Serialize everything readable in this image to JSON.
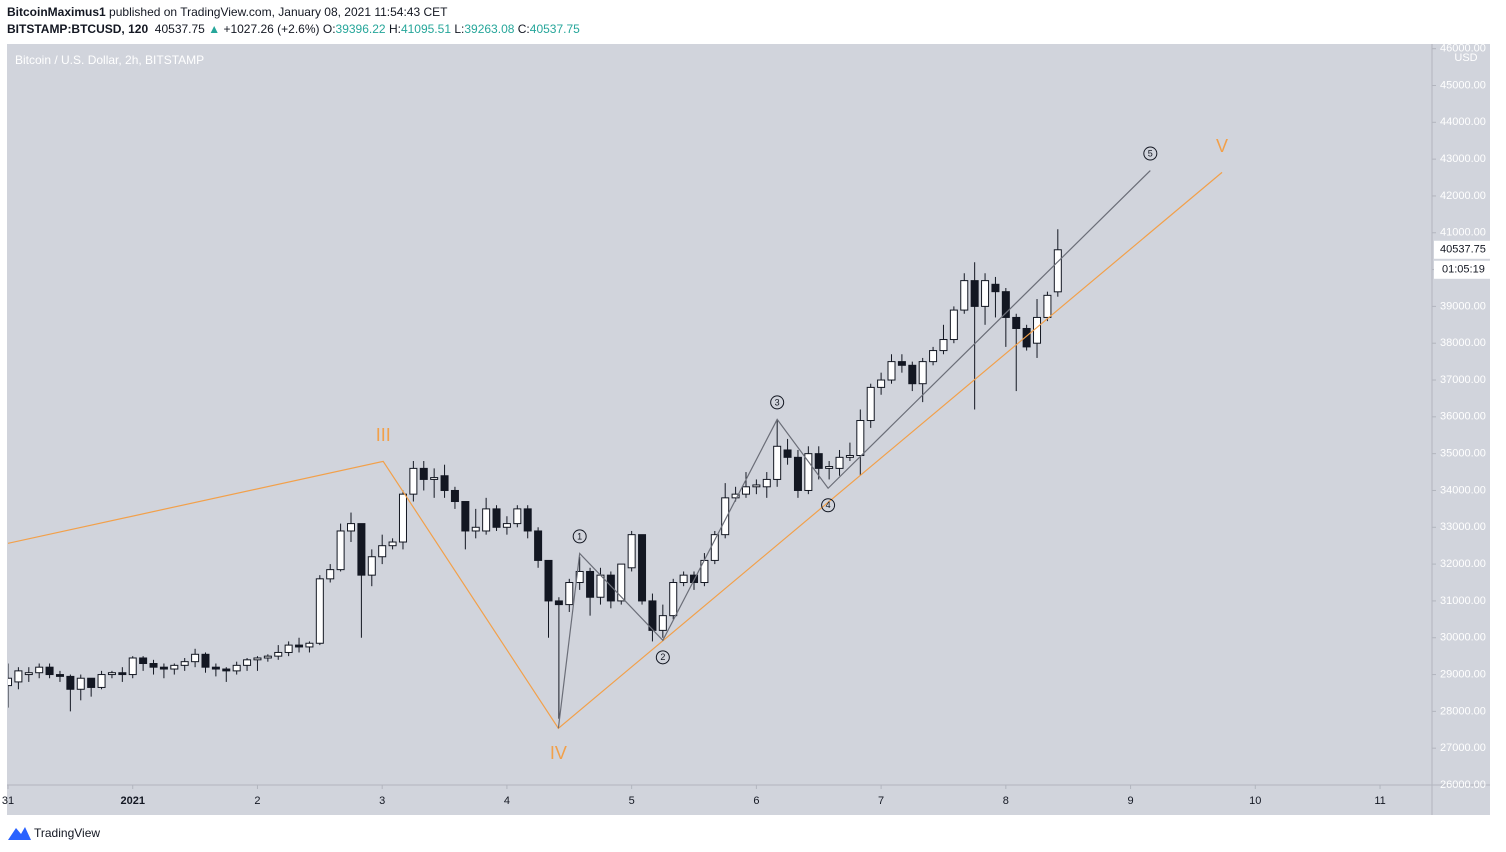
{
  "header": {
    "author": "BitcoinMaximus1",
    "published": "published on TradingView.com, January 08, 2021 11:54:43 CET",
    "symbol": "BITSTAMP:BTCUSD, 120",
    "last": "40537.75",
    "arrow": "▲",
    "change": "+1027.26 (+2.6%)",
    "ohlc": [
      {
        "label": "O:",
        "value": "39396.22"
      },
      {
        "label": "H:",
        "value": "41095.51"
      },
      {
        "label": "L:",
        "value": "39263.08"
      },
      {
        "label": "C:",
        "value": "40537.75"
      }
    ]
  },
  "chart_data": {
    "type": "candlestick",
    "title": "Bitcoin / U.S. Dollar, 2h, BITSTAMP",
    "y_unit": "USD",
    "countdown": "01:05:19",
    "up_color": "#ffffff",
    "down_color": "#131722",
    "grid": false,
    "x": [
      0,
      2,
      4,
      6,
      8,
      10,
      12,
      14,
      16,
      18,
      20,
      22,
      24,
      26,
      28,
      30,
      32,
      34,
      36,
      38,
      40,
      42,
      44,
      46,
      48,
      50,
      52,
      54,
      56,
      58,
      60,
      62,
      64,
      66,
      68,
      70,
      72,
      74,
      76,
      78,
      80,
      82,
      84,
      86,
      88,
      90,
      92,
      94,
      96,
      98,
      100,
      102,
      104,
      106,
      108,
      110,
      112,
      114,
      116,
      118,
      120,
      122,
      124,
      126,
      128,
      130,
      132,
      134,
      136,
      138,
      140,
      142,
      144,
      146,
      148,
      150,
      152,
      154,
      156,
      158,
      160,
      162,
      164,
      166,
      168,
      170,
      172,
      174,
      176,
      178,
      180,
      182,
      184,
      186,
      188,
      190,
      192,
      194,
      196,
      198,
      200,
      202
    ],
    "open": [
      28700,
      28800,
      29000,
      29050,
      29200,
      29000,
      28950,
      28600,
      28900,
      28650,
      29000,
      29050,
      29000,
      29450,
      29300,
      29200,
      29150,
      29250,
      29350,
      29550,
      29200,
      29150,
      29100,
      29250,
      29400,
      29450,
      29500,
      29600,
      29800,
      29750,
      29850,
      31600,
      31850,
      32900,
      33100,
      31700,
      32200,
      32500,
      32600,
      33900,
      34600,
      34300,
      34400,
      34000,
      33700,
      32900,
      32900,
      33500,
      33000,
      33100,
      33500,
      32900,
      32100,
      31000,
      30900,
      31500,
      31800,
      31100,
      31700,
      31000,
      31900,
      32800,
      31000,
      30200,
      30600,
      31500,
      31700,
      31500,
      32100,
      32800,
      33800,
      33900,
      34100,
      34100,
      34300,
      35100,
      34900,
      34000,
      35000,
      34600,
      34600,
      34900,
      34950,
      35900,
      36800,
      37000,
      37500,
      37400,
      36900,
      37500,
      37800,
      38100,
      38900,
      39700,
      39000,
      39600,
      39400,
      38700,
      38400,
      38000,
      38700,
      39396.22
    ],
    "high": [
      29300,
      29200,
      29200,
      29300,
      29300,
      29100,
      29000,
      29000,
      28900,
      29100,
      29100,
      29200,
      29500,
      29500,
      29400,
      29300,
      29300,
      29450,
      29700,
      29600,
      29300,
      29200,
      29350,
      29450,
      29500,
      29550,
      29800,
      29900,
      30000,
      29900,
      31700,
      32000,
      33100,
      33400,
      33100,
      32400,
      32800,
      32700,
      34000,
      34800,
      34800,
      34600,
      34700,
      34100,
      33700,
      33500,
      33800,
      33600,
      33300,
      33600,
      33600,
      33000,
      32100,
      31100,
      31600,
      32200,
      31900,
      31900,
      31800,
      32000,
      32900,
      32800,
      31200,
      30900,
      31600,
      31800,
      31800,
      32300,
      32900,
      34200,
      34100,
      34500,
      34300,
      34500,
      35900,
      35400,
      35100,
      35200,
      35200,
      34800,
      35100,
      35300,
      36200,
      36900,
      37200,
      37700,
      37700,
      37500,
      37600,
      37900,
      38500,
      39000,
      39900,
      40200,
      39900,
      39800,
      39500,
      38800,
      38500,
      39200,
      39400,
      41095.51
    ],
    "low": [
      28100,
      28600,
      28800,
      28900,
      28900,
      28800,
      28000,
      28300,
      28400,
      28600,
      28900,
      28800,
      28900,
      29100,
      29000,
      28900,
      29000,
      29100,
      29200,
      29050,
      28950,
      28800,
      29000,
      29100,
      29100,
      29350,
      29400,
      29500,
      29600,
      29600,
      29800,
      31500,
      31800,
      32600,
      30000,
      31400,
      32000,
      32400,
      32400,
      33700,
      34000,
      33800,
      33800,
      33500,
      32400,
      32700,
      32800,
      32900,
      32800,
      33000,
      32700,
      31900,
      30000,
      27800,
      30700,
      31300,
      30600,
      30900,
      30800,
      30900,
      31800,
      30900,
      29900,
      30000,
      30500,
      31400,
      31300,
      31400,
      32000,
      32700,
      33700,
      33800,
      33900,
      33800,
      34100,
      34700,
      33800,
      33900,
      34300,
      34300,
      34400,
      34800,
      34400,
      35700,
      36600,
      36900,
      37200,
      36700,
      36400,
      37400,
      37700,
      38000,
      38800,
      36200,
      38500,
      38700,
      37900,
      36700,
      37800,
      37600,
      38600,
      39263.08
    ],
    "close": [
      28900,
      29100,
      29050,
      29200,
      29000,
      28950,
      28600,
      28900,
      28650,
      29000,
      29050,
      29000,
      29450,
      29300,
      29200,
      29150,
      29250,
      29350,
      29550,
      29200,
      29150,
      29100,
      29250,
      29400,
      29450,
      29500,
      29600,
      29800,
      29750,
      29850,
      31600,
      31850,
      32900,
      33100,
      31700,
      32200,
      32500,
      32600,
      33900,
      34600,
      34300,
      34350,
      34000,
      33700,
      32900,
      33000,
      33500,
      33000,
      33100,
      33500,
      32900,
      32100,
      31000,
      30900,
      31500,
      31800,
      31100,
      31700,
      31000,
      32000,
      32800,
      31000,
      30200,
      30600,
      31500,
      31700,
      31500,
      32100,
      32800,
      33800,
      33900,
      34100,
      34150,
      34300,
      35200,
      34900,
      34000,
      35000,
      34600,
      34650,
      34900,
      34950,
      35900,
      36800,
      37000,
      37500,
      37400,
      36900,
      37500,
      37800,
      38100,
      38900,
      39700,
      39000,
      39700,
      39400,
      38700,
      38400,
      37900,
      38700,
      39300,
      40537.75
    ],
    "xlim": [
      0,
      274
    ],
    "xticks": [
      {
        "value": 0,
        "label": "31"
      },
      {
        "value": 24,
        "label": "2021"
      },
      {
        "value": 48,
        "label": "2"
      },
      {
        "value": 72,
        "label": "3"
      },
      {
        "value": 96,
        "label": "4"
      },
      {
        "value": 120,
        "label": "5"
      },
      {
        "value": 144,
        "label": "6"
      },
      {
        "value": 168,
        "label": "7"
      },
      {
        "value": 192,
        "label": "8"
      },
      {
        "value": 216,
        "label": "9"
      },
      {
        "value": 240,
        "label": "10"
      },
      {
        "value": 264,
        "label": "11"
      }
    ],
    "ylim": [
      26000,
      46100
    ],
    "yticks": [
      {
        "value": 26000,
        "label": "26000.00"
      },
      {
        "value": 27000,
        "label": "27000.00"
      },
      {
        "value": 28000,
        "label": "28000.00"
      },
      {
        "value": 29000,
        "label": "29000.00"
      },
      {
        "value": 30000,
        "label": "30000.00"
      },
      {
        "value": 31000,
        "label": "31000.00"
      },
      {
        "value": 32000,
        "label": "32000.00"
      },
      {
        "value": 33000,
        "label": "33000.00"
      },
      {
        "value": 34000,
        "label": "34000.00"
      },
      {
        "value": 35000,
        "label": "35000.00"
      },
      {
        "value": 36000,
        "label": "36000.00"
      },
      {
        "value": 37000,
        "label": "37000.00"
      },
      {
        "value": 38000,
        "label": "38000.00"
      },
      {
        "value": 39000,
        "label": "39000.00"
      },
      {
        "value": 40000,
        "label": "40000.00"
      },
      {
        "value": 41000,
        "label": "41000.00"
      },
      {
        "value": 42000,
        "label": "42000.00"
      },
      {
        "value": 43000,
        "label": "43000.00"
      },
      {
        "value": 44000,
        "label": "44000.00"
      },
      {
        "value": 45000,
        "label": "45000.00"
      },
      {
        "value": 46000,
        "label": "46000.00"
      }
    ],
    "waves": [
      {
        "color": "#f2a04a",
        "circled": false,
        "x": [
          0,
          72.2,
          105.9,
          233.6
        ],
        "y": [
          32565,
          34790,
          27540,
          42640
        ],
        "labels": [
          null,
          "III",
          "IV",
          "V"
        ],
        "label_pos": [
          null,
          "above",
          "below",
          "above"
        ]
      },
      {
        "color": "#6b6e78",
        "circled": true,
        "x": [
          105.9,
          110,
          126,
          148,
          157.8,
          219.8
        ],
        "y": [
          27540,
          32290,
          29930,
          35930,
          34060,
          42690
        ],
        "labels": [
          null,
          "1",
          "2",
          "3",
          "4",
          "5"
        ],
        "label_pos": [
          null,
          "above",
          "below",
          "above",
          "below",
          "above"
        ]
      }
    ]
  },
  "footer": {
    "brand": "TradingView"
  }
}
